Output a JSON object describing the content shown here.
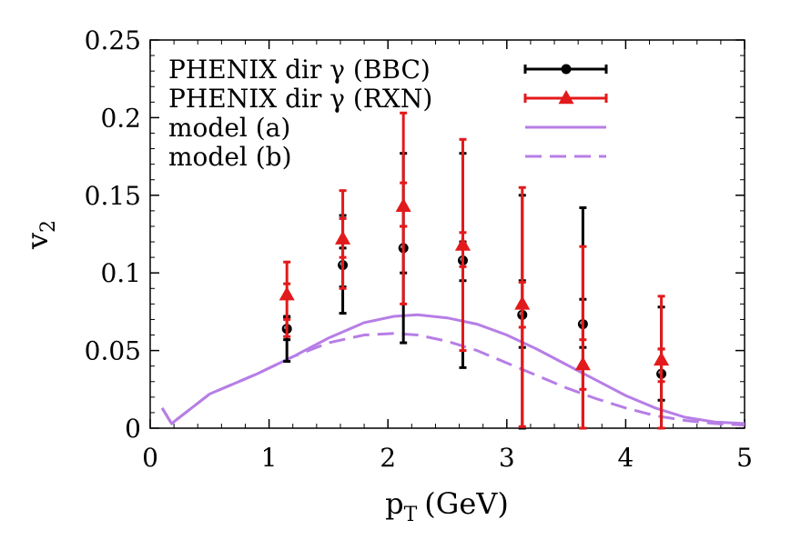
{
  "chart_data": {
    "type": "scatter",
    "xlabel": "p",
    "xlabel_sub": "T",
    "xlabel_unit": "(GeV)",
    "ylabel": "v",
    "ylabel_sub": "2",
    "xlim": [
      0,
      5
    ],
    "ylim": [
      0,
      0.25
    ],
    "xticks": [
      0,
      1,
      2,
      3,
      4,
      5
    ],
    "yticks": [
      0,
      0.05,
      0.1,
      0.15,
      0.2,
      0.25
    ],
    "xtick_labels": [
      "0",
      "1",
      "2",
      "3",
      "4",
      "5"
    ],
    "ytick_labels": [
      "0",
      "0.05",
      "0.1",
      "0.15",
      "0.2",
      "0.25"
    ],
    "grid": false,
    "legend_position": "top-left",
    "series": [
      {
        "name": "PHENIX dir γ (BBC)",
        "kind": "points-errorbars",
        "marker": "circle",
        "color": "#000000",
        "points": [
          {
            "x": 1.15,
            "y": 0.064,
            "y_low": 0.043,
            "y_high": 0.072,
            "sys_low": 0.057,
            "sys_high": 0.071
          },
          {
            "x": 1.62,
            "y": 0.105,
            "y_low": 0.074,
            "y_high": 0.137,
            "sys_low": 0.091,
            "sys_high": 0.116
          },
          {
            "x": 2.13,
            "y": 0.116,
            "y_low": 0.055,
            "y_high": 0.177,
            "sys_low": 0.1,
            "sys_high": 0.13
          },
          {
            "x": 2.63,
            "y": 0.108,
            "y_low": 0.039,
            "y_high": 0.177,
            "sys_low": 0.095,
            "sys_high": 0.12
          },
          {
            "x": 3.13,
            "y": 0.073,
            "y_low": 0.0,
            "y_high": 0.15,
            "sys_low": 0.052,
            "sys_high": 0.095
          },
          {
            "x": 3.64,
            "y": 0.067,
            "y_low": 0.0,
            "y_high": 0.142,
            "sys_low": 0.052,
            "sys_high": 0.083
          },
          {
            "x": 4.3,
            "y": 0.035,
            "y_low": 0.0,
            "y_high": 0.078,
            "sys_low": 0.018,
            "sys_high": 0.051
          }
        ]
      },
      {
        "name": "PHENIX dir γ (RXN)",
        "kind": "points-errorbars",
        "marker": "triangle",
        "color": "#e31a1c",
        "points": [
          {
            "x": 1.15,
            "y": 0.086,
            "y_low": 0.059,
            "y_high": 0.107,
            "sys_low": 0.07,
            "sys_high": 0.093
          },
          {
            "x": 1.62,
            "y": 0.122,
            "y_low": 0.09,
            "y_high": 0.153,
            "sys_low": 0.11,
            "sys_high": 0.135
          },
          {
            "x": 2.13,
            "y": 0.143,
            "y_low": 0.08,
            "y_high": 0.203,
            "sys_low": 0.13,
            "sys_high": 0.158
          },
          {
            "x": 2.63,
            "y": 0.118,
            "y_low": 0.05,
            "y_high": 0.186,
            "sys_low": 0.104,
            "sys_high": 0.126
          },
          {
            "x": 3.13,
            "y": 0.08,
            "y_low": 0.001,
            "y_high": 0.155,
            "sys_low": 0.065,
            "sys_high": 0.094
          },
          {
            "x": 3.64,
            "y": 0.041,
            "y_low": 0.0,
            "y_high": 0.117,
            "sys_low": 0.025,
            "sys_high": 0.057
          },
          {
            "x": 4.3,
            "y": 0.044,
            "y_low": 0.0,
            "y_high": 0.085,
            "sys_low": 0.03,
            "sys_high": 0.051
          }
        ]
      },
      {
        "name": "model (a)",
        "kind": "line",
        "dash": "solid",
        "color": "#b77ee6",
        "x": [
          0.1,
          0.18,
          0.5,
          0.9,
          1.2,
          1.5,
          1.8,
          2.05,
          2.25,
          2.5,
          2.75,
          3.0,
          3.25,
          3.5,
          3.75,
          4.0,
          4.25,
          4.5,
          4.75,
          5.0
        ],
        "y": [
          0.013,
          0.003,
          0.022,
          0.035,
          0.046,
          0.058,
          0.068,
          0.072,
          0.073,
          0.071,
          0.067,
          0.06,
          0.051,
          0.041,
          0.031,
          0.021,
          0.013,
          0.007,
          0.004,
          0.003
        ]
      },
      {
        "name": "model (b)",
        "kind": "line",
        "dash": "dashed",
        "color": "#b77ee6",
        "x": [
          0.1,
          0.18,
          0.5,
          0.9,
          1.2,
          1.5,
          1.8,
          2.05,
          2.25,
          2.5,
          2.75,
          3.0,
          3.25,
          3.5,
          3.75,
          4.0,
          4.25,
          4.5,
          4.75,
          5.0
        ],
        "y": [
          0.013,
          0.003,
          0.022,
          0.035,
          0.046,
          0.055,
          0.06,
          0.061,
          0.06,
          0.056,
          0.05,
          0.042,
          0.034,
          0.026,
          0.019,
          0.013,
          0.008,
          0.005,
          0.003,
          0.002
        ]
      }
    ]
  }
}
